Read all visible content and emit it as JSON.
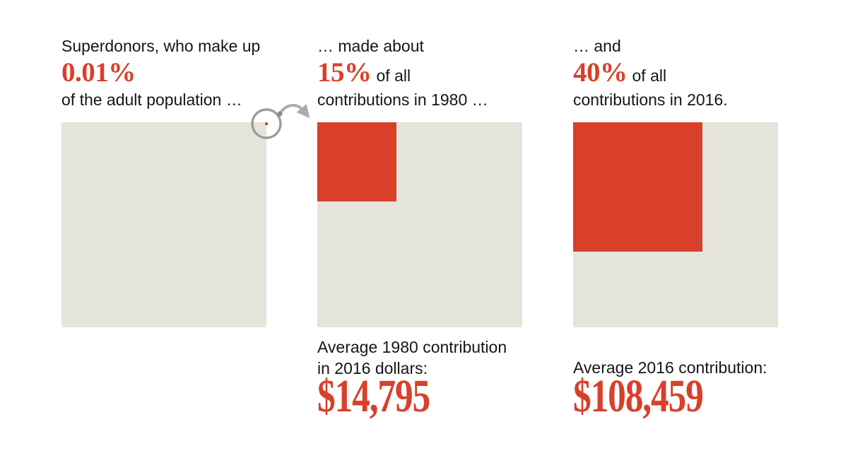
{
  "colors": {
    "red": "#d8402a",
    "beige": "#e5e4db",
    "text": "#161616",
    "arrow": "#acacac",
    "circle": "#9d9d9d",
    "arrow_tail": "#8a8a8a"
  },
  "panels": [
    {
      "intro": "Superdonors, who make up",
      "stat": "0.01%",
      "suffix": "",
      "outro": "of the adult population …",
      "share_pct": 0.01
    },
    {
      "intro": "… made about",
      "stat": "15%",
      "suffix": "of all",
      "outro": "contributions in 1980 …",
      "share_pct": 15,
      "label_line1": "Average 1980 contribution",
      "label_line2": "in 2016 dollars:",
      "value": "$14,795"
    },
    {
      "intro": "… and",
      "stat": "40%",
      "suffix": "of all",
      "outro": "contributions in 2016.",
      "share_pct": 40,
      "label_line1": "Average 2016 contribution:",
      "label_line2": "",
      "value": "$108,459"
    }
  ],
  "chart_data": {
    "type": "pie",
    "variant": "proportional-area-squares",
    "title": "",
    "legend": "none",
    "categories": [
      "Superdonors as share of the adult population",
      "Superdonors' share of all contributions in 1980",
      "Superdonors' share of all contributions in 2016"
    ],
    "values": [
      0.01,
      15,
      40
    ],
    "unit": "percent (area of red square within full square)",
    "narrative": [
      "Superdonors, who make up 0.01% of the adult population …",
      "… made about 15% of all contributions in 1980 …",
      "… and 40% of all contributions in 2016."
    ],
    "annotations": [
      {
        "label": "Average 1980 contribution in 2016 dollars:",
        "value": "$14,795",
        "value_numeric": 14795
      },
      {
        "label": "Average 2016 contribution:",
        "value": "$108,459",
        "value_numeric": 108459
      }
    ]
  }
}
